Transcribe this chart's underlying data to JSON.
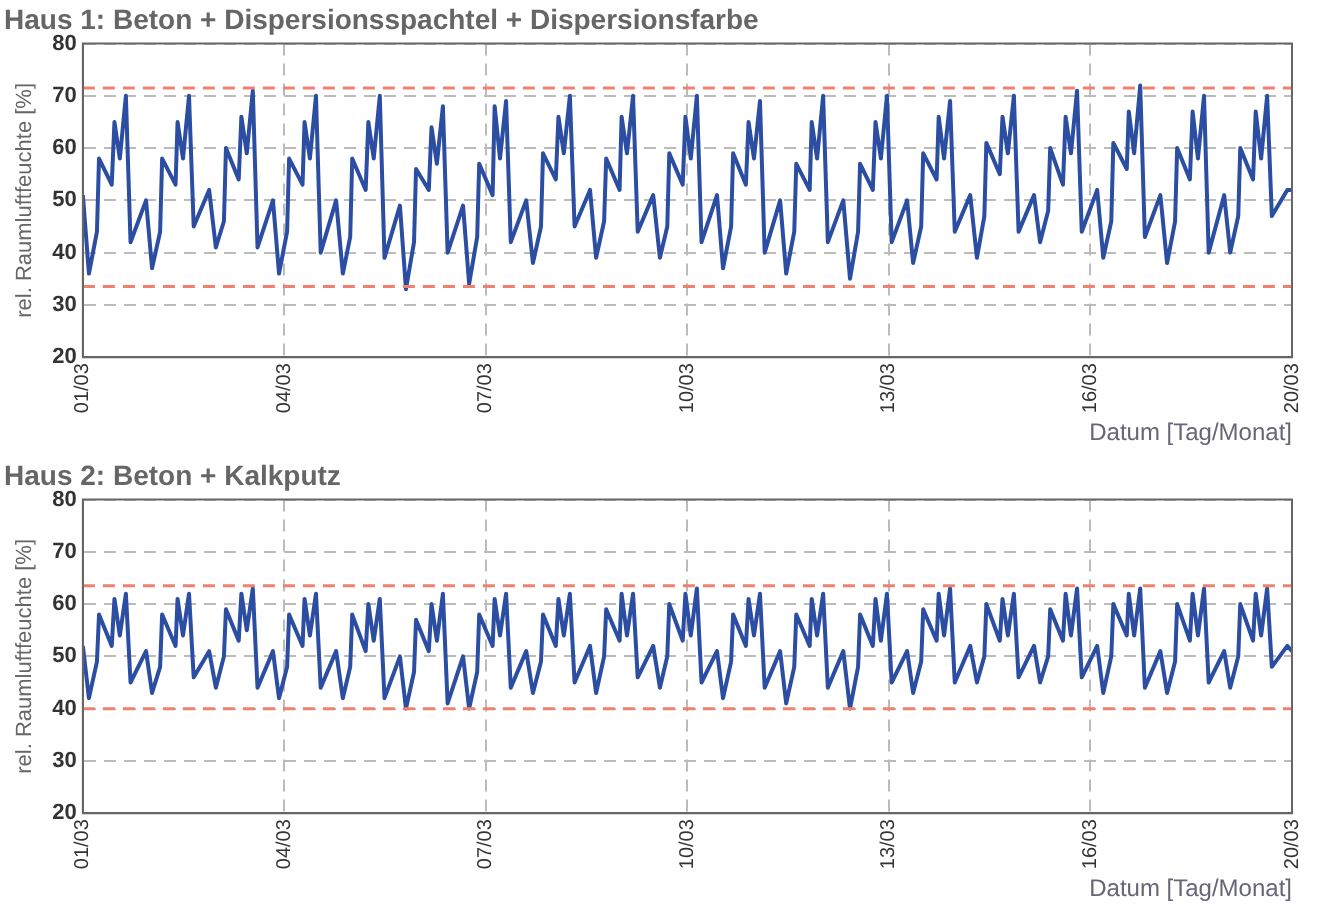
{
  "chart_data": [
    {
      "type": "line",
      "title": "Haus 1: Beton + Dispersionsspachtel + Dispersionsfarbe",
      "ylabel": "rel. Raumluftfeuchte [%]",
      "xlabel": "Datum [Tag/Monat]",
      "x": [
        "--03-01T00:00",
        "--03-01T02:10",
        "--03-01T05:02",
        "--03-01T05:46",
        "--03-01T10:19",
        "--03-01T11:17",
        "--03-01T13:12",
        "--03-01T15:22",
        "--03-01T17:02",
        "--03-01T22:34",
        "--03-02T00:43",
        "--03-02T03:36",
        "--03-02T04:19",
        "--03-02T09:07",
        "--03-02T09:50",
        "--03-02T11:46",
        "--03-02T13:55",
        "--03-02T15:36",
        "--03-02T21:07",
        "--03-02T23:31",
        "--03-03T02:24",
        "--03-03T03:07",
        "--03-03T07:41",
        "--03-03T08:38",
        "--03-03T10:34",
        "--03-03T12:43",
        "--03-03T14:24",
        "--03-03T19:55",
        "--03-03T22:05",
        "--03-04T00:58",
        "--03-04T01:41",
        "--03-04T06:29",
        "--03-04T07:12",
        "--03-04T09:07",
        "--03-04T11:17",
        "--03-04T12:58",
        "--03-04T18:29",
        "--03-04T20:53",
        "--03-04T23:31",
        "--03-05T00:14",
        "--03-05T05:02",
        "--03-05T06:00",
        "--03-05T07:55",
        "--03-05T10:05",
        "--03-05T11:46",
        "--03-05T17:17",
        "--03-05T19:26",
        "--03-05T22:19",
        "--03-05T23:02",
        "--03-06T03:36",
        "--03-06T04:34",
        "--03-06T06:29",
        "--03-06T08:38",
        "--03-06T10:19",
        "--03-06T15:50",
        "--03-06T18:00",
        "--03-06T20:53",
        "--03-06T21:36",
        "--03-07T02:24",
        "--03-07T03:07",
        "--03-07T05:02",
        "--03-07T07:12",
        "--03-07T08:53",
        "--03-07T14:24",
        "--03-07T16:48",
        "--03-07T19:41",
        "--03-07T20:24",
        "--03-08T00:58",
        "--03-08T01:55",
        "--03-08T03:50",
        "--03-08T06:00",
        "--03-08T07:41",
        "--03-08T13:12",
        "--03-08T15:22",
        "--03-08T18:14",
        "--03-08T18:58",
        "--03-08T23:46",
        "--03-09T00:29",
        "--03-09T02:24",
        "--03-09T04:34",
        "--03-09T06:14",
        "--03-09T11:46",
        "--03-09T14:10",
        "--03-09T16:48",
        "--03-09T17:31",
        "--03-09T22:19",
        "--03-09T23:17",
        "--03-10T01:12",
        "--03-10T03:22",
        "--03-10T05:02",
        "--03-10T10:34",
        "--03-10T12:43",
        "--03-10T15:36",
        "--03-10T16:19",
        "--03-10T20:53",
        "--03-10T21:50",
        "--03-10T23:46",
        "--03-11T01:55",
        "--03-11T03:36",
        "--03-11T09:07",
        "--03-11T11:17",
        "--03-11T14:10",
        "--03-11T14:53",
        "--03-11T19:41",
        "--03-11T20:24",
        "--03-11T22:19",
        "--03-12T00:29",
        "--03-12T02:10",
        "--03-12T07:41",
        "--03-12T10:05",
        "--03-12T12:58",
        "--03-12T13:41",
        "--03-12T18:14",
        "--03-12T19:12",
        "--03-12T21:07",
        "--03-12T23:17",
        "--03-13T00:58",
        "--03-13T06:29",
        "--03-13T08:38",
        "--03-13T11:31",
        "--03-13T12:14",
        "--03-13T17:02",
        "--03-13T17:46",
        "--03-13T19:41",
        "--03-13T21:50",
        "--03-13T23:31",
        "--03-14T05:02",
        "--03-14T07:26",
        "--03-14T10:05",
        "--03-14T10:48",
        "--03-14T15:36",
        "--03-14T16:34",
        "--03-14T18:29",
        "--03-14T20:38",
        "--03-14T22:19",
        "--03-15T03:50",
        "--03-15T06:00",
        "--03-15T08:53",
        "--03-15T09:36",
        "--03-15T14:10",
        "--03-15T15:07",
        "--03-15T17:02",
        "--03-15T19:12",
        "--03-15T20:53",
        "--03-16T02:24",
        "--03-16T04:34",
        "--03-16T07:26",
        "--03-16T08:10",
        "--03-16T12:58",
        "--03-16T13:41",
        "--03-16T15:36",
        "--03-16T17:46",
        "--03-16T19:26",
        "--03-17T00:58",
        "--03-17T03:22",
        "--03-17T06:14",
        "--03-17T06:58",
        "--03-17T11:31",
        "--03-17T12:29",
        "--03-17T14:24",
        "--03-17T16:34",
        "--03-17T18:14",
        "--03-17T23:46",
        "--03-18T01:55",
        "--03-18T04:48",
        "--03-18T05:31",
        "--03-18T10:05",
        "--03-18T11:02",
        "--03-18T12:58",
        "--03-18T15:07",
        "--03-18T16:48",
        "--03-18T22:19",
        "--03-19T00:00"
      ],
      "series": [
        {
          "color": "#2b4ea2",
          "values": [
            51,
            36,
            44,
            58,
            53,
            65,
            58,
            70,
            42,
            50,
            37,
            44,
            58,
            53,
            65,
            58,
            70,
            45,
            52,
            41,
            46,
            60,
            54,
            66,
            59,
            71,
            41,
            50,
            36,
            44,
            58,
            53,
            65,
            58,
            70,
            40,
            50,
            36,
            43,
            58,
            52,
            65,
            58,
            70,
            39,
            49,
            33,
            42,
            56,
            52,
            64,
            57,
            68,
            40,
            49,
            34,
            43,
            57,
            51,
            68,
            58,
            69,
            42,
            50,
            38,
            45,
            59,
            54,
            66,
            59,
            70,
            45,
            52,
            39,
            46,
            58,
            52,
            66,
            59,
            70,
            44,
            51,
            39,
            45,
            59,
            53,
            66,
            58,
            70,
            42,
            51,
            37,
            45,
            59,
            53,
            65,
            58,
            69,
            40,
            50,
            36,
            44,
            57,
            52,
            65,
            58,
            70,
            42,
            50,
            35,
            44,
            57,
            52,
            65,
            58,
            70,
            42,
            50,
            38,
            45,
            59,
            54,
            66,
            58,
            69,
            44,
            51,
            39,
            47,
            61,
            55,
            66,
            59,
            70,
            44,
            51,
            42,
            48,
            60,
            53,
            66,
            59,
            71,
            44,
            52,
            39,
            46,
            61,
            56,
            67,
            59,
            72,
            43,
            51,
            38,
            46,
            60,
            54,
            67,
            58,
            70,
            40,
            51,
            40,
            47,
            60,
            54,
            67,
            58,
            70,
            47,
            52,
            52
          ]
        }
      ],
      "xlim": [
        "--03-01",
        "--03-19"
      ],
      "xticks": [
        {
          "value": "--03-01",
          "label": "01/03"
        },
        {
          "value": "--03-04",
          "label": "04/03"
        },
        {
          "value": "--03-07",
          "label": "07/03"
        },
        {
          "value": "--03-10",
          "label": "10/03"
        },
        {
          "value": "--03-13",
          "label": "13/03"
        },
        {
          "value": "--03-16",
          "label": "16/03"
        },
        {
          "value": "--03-19",
          "label": "20/03"
        }
      ],
      "ylim": [
        20,
        80
      ],
      "yticks": [
        20,
        30,
        40,
        50,
        60,
        70,
        80
      ],
      "grid": true,
      "ref_lines": [
        {
          "axis": "y",
          "value": 71.5,
          "color": "#f08070",
          "line_style": "dashed"
        },
        {
          "axis": "y",
          "value": 33.5,
          "color": "#f08070",
          "line_style": "dashed"
        }
      ]
    },
    {
      "type": "line",
      "title": "Haus 2: Beton + Kalkputz",
      "ylabel": "rel. Raumluftfeuchte [%]",
      "xlabel": "Datum [Tag/Monat]",
      "x": [
        "--03-01T00:00",
        "--03-01T02:10",
        "--03-01T05:02",
        "--03-01T05:46",
        "--03-01T10:19",
        "--03-01T11:17",
        "--03-01T13:12",
        "--03-01T15:22",
        "--03-01T17:02",
        "--03-01T22:34",
        "--03-02T00:43",
        "--03-02T03:36",
        "--03-02T04:19",
        "--03-02T09:07",
        "--03-02T09:50",
        "--03-02T11:46",
        "--03-02T13:55",
        "--03-02T15:36",
        "--03-02T21:07",
        "--03-02T23:31",
        "--03-03T02:24",
        "--03-03T03:07",
        "--03-03T07:41",
        "--03-03T08:38",
        "--03-03T10:34",
        "--03-03T12:43",
        "--03-03T14:24",
        "--03-03T19:55",
        "--03-03T22:05",
        "--03-04T00:58",
        "--03-04T01:41",
        "--03-04T06:29",
        "--03-04T07:12",
        "--03-04T09:07",
        "--03-04T11:17",
        "--03-04T12:58",
        "--03-04T18:29",
        "--03-04T20:53",
        "--03-04T23:31",
        "--03-05T00:14",
        "--03-05T05:02",
        "--03-05T06:00",
        "--03-05T07:55",
        "--03-05T10:05",
        "--03-05T11:46",
        "--03-05T17:17",
        "--03-05T19:26",
        "--03-05T22:19",
        "--03-05T23:02",
        "--03-06T03:36",
        "--03-06T04:34",
        "--03-06T06:29",
        "--03-06T08:38",
        "--03-06T10:19",
        "--03-06T15:50",
        "--03-06T18:00",
        "--03-06T20:53",
        "--03-06T21:36",
        "--03-07T02:24",
        "--03-07T03:07",
        "--03-07T05:02",
        "--03-07T07:12",
        "--03-07T08:53",
        "--03-07T14:24",
        "--03-07T16:48",
        "--03-07T19:41",
        "--03-07T20:24",
        "--03-08T00:58",
        "--03-08T01:55",
        "--03-08T03:50",
        "--03-08T06:00",
        "--03-08T07:41",
        "--03-08T13:12",
        "--03-08T15:22",
        "--03-08T18:14",
        "--03-08T18:58",
        "--03-08T23:46",
        "--03-09T00:29",
        "--03-09T02:24",
        "--03-09T04:34",
        "--03-09T06:14",
        "--03-09T11:46",
        "--03-09T14:10",
        "--03-09T16:48",
        "--03-09T17:31",
        "--03-09T22:19",
        "--03-09T23:17",
        "--03-10T01:12",
        "--03-10T03:22",
        "--03-10T05:02",
        "--03-10T10:34",
        "--03-10T12:43",
        "--03-10T15:36",
        "--03-10T16:19",
        "--03-10T20:53",
        "--03-10T21:50",
        "--03-10T23:46",
        "--03-11T01:55",
        "--03-11T03:36",
        "--03-11T09:07",
        "--03-11T11:17",
        "--03-11T14:10",
        "--03-11T14:53",
        "--03-11T19:41",
        "--03-11T20:24",
        "--03-11T22:19",
        "--03-12T00:29",
        "--03-12T02:10",
        "--03-12T07:41",
        "--03-12T10:05",
        "--03-12T12:58",
        "--03-12T13:41",
        "--03-12T18:14",
        "--03-12T19:12",
        "--03-12T21:07",
        "--03-12T23:17",
        "--03-13T00:58",
        "--03-13T06:29",
        "--03-13T08:38",
        "--03-13T11:31",
        "--03-13T12:14",
        "--03-13T17:02",
        "--03-13T17:46",
        "--03-13T19:41",
        "--03-13T21:50",
        "--03-13T23:31",
        "--03-14T05:02",
        "--03-14T07:26",
        "--03-14T10:05",
        "--03-14T10:48",
        "--03-14T15:36",
        "--03-14T16:34",
        "--03-14T18:29",
        "--03-14T20:38",
        "--03-14T22:19",
        "--03-15T03:50",
        "--03-15T06:00",
        "--03-15T08:53",
        "--03-15T09:36",
        "--03-15T14:10",
        "--03-15T15:07",
        "--03-15T17:02",
        "--03-15T19:12",
        "--03-15T20:53",
        "--03-16T02:24",
        "--03-16T04:34",
        "--03-16T07:26",
        "--03-16T08:10",
        "--03-16T12:58",
        "--03-16T13:41",
        "--03-16T15:36",
        "--03-16T17:46",
        "--03-16T19:26",
        "--03-17T00:58",
        "--03-17T03:22",
        "--03-17T06:14",
        "--03-17T06:58",
        "--03-17T11:31",
        "--03-17T12:29",
        "--03-17T14:24",
        "--03-17T16:34",
        "--03-17T18:14",
        "--03-17T23:46",
        "--03-18T01:55",
        "--03-18T04:48",
        "--03-18T05:31",
        "--03-18T10:05",
        "--03-18T11:02",
        "--03-18T12:58",
        "--03-18T15:07",
        "--03-18T16:48",
        "--03-18T22:19",
        "--03-19T00:00"
      ],
      "series": [
        {
          "color": "#2b4ea2",
          "values": [
            52,
            42,
            49,
            58,
            52,
            61,
            54,
            62,
            45,
            51,
            43,
            48,
            58,
            52,
            61,
            54,
            62,
            46,
            51,
            44,
            50,
            59,
            53,
            62,
            55,
            63,
            44,
            51,
            42,
            48,
            58,
            52,
            61,
            54,
            62,
            44,
            51,
            42,
            48,
            58,
            51,
            60,
            53,
            61,
            42,
            50,
            40,
            47,
            57,
            51,
            60,
            53,
            62,
            41,
            50,
            40,
            47,
            58,
            52,
            61,
            54,
            62,
            44,
            51,
            43,
            49,
            58,
            52,
            61,
            54,
            62,
            45,
            52,
            43,
            50,
            59,
            53,
            62,
            54,
            62,
            46,
            52,
            44,
            50,
            60,
            53,
            62,
            54,
            63,
            45,
            51,
            42,
            49,
            58,
            52,
            61,
            54,
            62,
            44,
            51,
            41,
            48,
            58,
            52,
            61,
            54,
            62,
            44,
            51,
            40,
            48,
            58,
            52,
            61,
            53,
            62,
            45,
            51,
            43,
            49,
            59,
            53,
            62,
            54,
            63,
            45,
            52,
            45,
            50,
            60,
            53,
            61,
            54,
            62,
            46,
            52,
            45,
            50,
            59,
            53,
            62,
            54,
            63,
            46,
            52,
            43,
            50,
            60,
            54,
            62,
            54,
            63,
            44,
            51,
            43,
            49,
            60,
            53,
            62,
            54,
            63,
            45,
            51,
            44,
            50,
            60,
            53,
            62,
            54,
            63,
            48,
            52,
            51
          ]
        }
      ],
      "xlim": [
        "--03-01",
        "--03-19"
      ],
      "xticks": [
        {
          "value": "--03-01",
          "label": "01/03"
        },
        {
          "value": "--03-04",
          "label": "04/03"
        },
        {
          "value": "--03-07",
          "label": "07/03"
        },
        {
          "value": "--03-10",
          "label": "10/03"
        },
        {
          "value": "--03-13",
          "label": "13/03"
        },
        {
          "value": "--03-16",
          "label": "16/03"
        },
        {
          "value": "--03-19",
          "label": "20/03"
        }
      ],
      "ylim": [
        20,
        80
      ],
      "yticks": [
        20,
        30,
        40,
        50,
        60,
        70,
        80
      ],
      "grid": true,
      "ref_lines": [
        {
          "axis": "y",
          "value": 63.5,
          "color": "#f08070",
          "line_style": "dashed"
        },
        {
          "axis": "y",
          "value": 40,
          "color": "#f08070",
          "line_style": "dashed"
        }
      ]
    }
  ]
}
